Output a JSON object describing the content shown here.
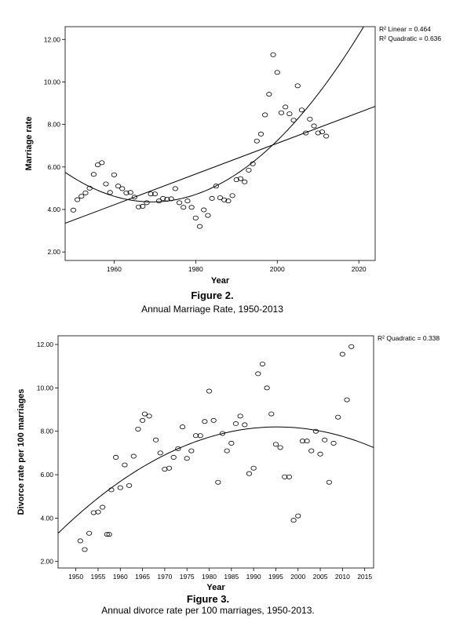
{
  "chart_data": [
    {
      "type": "scatter",
      "figure_label": "Figure 2.",
      "caption": "Annual Marriage Rate, 1950-2013",
      "xlabel": "Year",
      "ylabel": "Marriage rate",
      "xlim": [
        1948,
        2024
      ],
      "ylim": [
        1.6,
        12.6
      ],
      "xticks": [
        1960,
        1980,
        2000,
        2020
      ],
      "xtick_labels": [
        "1960",
        "1980",
        "2000",
        "2020"
      ],
      "yticks": [
        2,
        4,
        6,
        8,
        10,
        12
      ],
      "ytick_labels": [
        "2.00",
        "4.00",
        "6.00",
        "8.00",
        "10.00",
        "12.00"
      ],
      "fit_labels": [
        "R² Linear = 0.464",
        "R² Quadratic = 0.636"
      ],
      "points": [
        [
          1950,
          3.97
        ],
        [
          1951,
          4.46
        ],
        [
          1952,
          4.62
        ],
        [
          1953,
          4.78
        ],
        [
          1954,
          5.0
        ],
        [
          1955,
          5.65
        ],
        [
          1956,
          6.1
        ],
        [
          1957,
          6.2
        ],
        [
          1958,
          5.2
        ],
        [
          1959,
          4.8
        ],
        [
          1960,
          5.63
        ],
        [
          1961,
          5.1
        ],
        [
          1962,
          4.98
        ],
        [
          1963,
          4.78
        ],
        [
          1964,
          4.8
        ],
        [
          1965,
          4.58
        ],
        [
          1966,
          4.12
        ],
        [
          1967,
          4.15
        ],
        [
          1968,
          4.32
        ],
        [
          1969,
          4.73
        ],
        [
          1970,
          4.73
        ],
        [
          1971,
          4.4
        ],
        [
          1972,
          4.52
        ],
        [
          1973,
          4.48
        ],
        [
          1974,
          4.5
        ],
        [
          1975,
          4.98
        ],
        [
          1976,
          4.32
        ],
        [
          1977,
          4.1
        ],
        [
          1978,
          4.4
        ],
        [
          1979,
          4.1
        ],
        [
          1980,
          3.6
        ],
        [
          1981,
          3.2
        ],
        [
          1982,
          3.98
        ],
        [
          1983,
          3.72
        ],
        [
          1984,
          4.52
        ],
        [
          1985,
          5.1
        ],
        [
          1986,
          4.55
        ],
        [
          1987,
          4.45
        ],
        [
          1988,
          4.4
        ],
        [
          1989,
          4.65
        ],
        [
          1990,
          5.4
        ],
        [
          1991,
          5.45
        ],
        [
          1992,
          5.3
        ],
        [
          1993,
          5.85
        ],
        [
          1994,
          6.15
        ],
        [
          1995,
          7.22
        ],
        [
          1996,
          7.55
        ],
        [
          1997,
          8.45
        ],
        [
          1998,
          9.42
        ],
        [
          1999,
          11.28
        ],
        [
          2000,
          10.45
        ],
        [
          2001,
          8.55
        ],
        [
          2002,
          8.82
        ],
        [
          2003,
          8.5
        ],
        [
          2004,
          8.2
        ],
        [
          2005,
          9.82
        ],
        [
          2006,
          8.68
        ],
        [
          2007,
          7.6
        ],
        [
          2008,
          8.25
        ],
        [
          2009,
          7.93
        ],
        [
          2010,
          7.6
        ],
        [
          2011,
          7.65
        ],
        [
          2012,
          7.45
        ]
      ],
      "curves": [
        {
          "kind": "linear",
          "from": [
            1948,
            3.35
          ],
          "to": [
            2024,
            8.85
          ]
        },
        {
          "kind": "quadratic",
          "through": [
            [
              1948,
              5.7
            ],
            [
              1965,
              4.45
            ],
            [
              1975,
              4.55
            ],
            [
              2000,
              7.1
            ],
            [
              2021,
              12.6
            ]
          ]
        }
      ]
    },
    {
      "type": "scatter",
      "figure_label": "Figure 3.",
      "caption": "Annual divorce rate per 100 marriages, 1950-2013.",
      "xlabel": "Year",
      "ylabel": "Divorce rate per 100 marriages",
      "xlim": [
        1946,
        2017
      ],
      "ylim": [
        1.7,
        12.4
      ],
      "xticks": [
        1950,
        1955,
        1960,
        1965,
        1970,
        1975,
        1980,
        1985,
        1990,
        1995,
        2000,
        2005,
        2010,
        2015
      ],
      "xtick_labels": [
        "1950",
        "1955",
        "1960",
        "1965",
        "1970",
        "1975",
        "1980",
        "1985",
        "1990",
        "1995",
        "2000",
        "2005",
        "2010",
        "2015"
      ],
      "yticks": [
        2,
        4,
        6,
        8,
        10,
        12
      ],
      "ytick_labels": [
        "2.00",
        "4.00",
        "6.00",
        "8.00",
        "10.00",
        "12.00"
      ],
      "fit_labels": [
        "R² Quadratic = 0.338"
      ],
      "points": [
        [
          1951,
          2.95
        ],
        [
          1952,
          2.55
        ],
        [
          1953,
          3.3
        ],
        [
          1954,
          4.25
        ],
        [
          1955,
          4.28
        ],
        [
          1956,
          4.5
        ],
        [
          1957,
          3.25
        ],
        [
          1957.5,
          3.25
        ],
        [
          1958,
          5.3
        ],
        [
          1959,
          6.8
        ],
        [
          1960,
          5.4
        ],
        [
          1961,
          6.45
        ],
        [
          1962,
          5.5
        ],
        [
          1963,
          6.85
        ],
        [
          1964,
          8.1
        ],
        [
          1965,
          8.5
        ],
        [
          1965.5,
          8.8
        ],
        [
          1966.5,
          8.7
        ],
        [
          1968,
          7.6
        ],
        [
          1969,
          7.0
        ],
        [
          1970,
          6.25
        ],
        [
          1971,
          6.3
        ],
        [
          1972,
          6.8
        ],
        [
          1973,
          7.2
        ],
        [
          1974,
          8.2
        ],
        [
          1975,
          6.75
        ],
        [
          1976,
          7.1
        ],
        [
          1977,
          7.8
        ],
        [
          1978,
          7.8
        ],
        [
          1979,
          8.45
        ],
        [
          1980,
          9.85
        ],
        [
          1981,
          8.5
        ],
        [
          1982,
          5.65
        ],
        [
          1983,
          7.9
        ],
        [
          1984,
          7.1
        ],
        [
          1985,
          7.45
        ],
        [
          1986,
          8.35
        ],
        [
          1987,
          8.7
        ],
        [
          1988,
          8.3
        ],
        [
          1989,
          6.05
        ],
        [
          1990,
          6.3
        ],
        [
          1991,
          10.65
        ],
        [
          1992,
          11.1
        ],
        [
          1993,
          10.0
        ],
        [
          1994,
          8.8
        ],
        [
          1995,
          7.4
        ],
        [
          1996,
          7.25
        ],
        [
          1997,
          5.9
        ],
        [
          1998,
          5.9
        ],
        [
          1999,
          3.9
        ],
        [
          2000,
          4.1
        ],
        [
          2001,
          7.55
        ],
        [
          2002,
          7.55
        ],
        [
          2003,
          7.1
        ],
        [
          2004,
          8.0
        ],
        [
          2005,
          6.95
        ],
        [
          2006,
          7.6
        ],
        [
          2007,
          5.65
        ],
        [
          2008,
          7.45
        ],
        [
          2009,
          8.65
        ],
        [
          2010,
          11.55
        ],
        [
          2011,
          9.45
        ],
        [
          2012,
          11.9
        ]
      ],
      "curves": [
        {
          "kind": "quadratic",
          "through": [
            [
              1946,
              3.3
            ],
            [
              1995,
              8.2
            ],
            [
              2017,
              7.25
            ]
          ]
        }
      ]
    }
  ]
}
